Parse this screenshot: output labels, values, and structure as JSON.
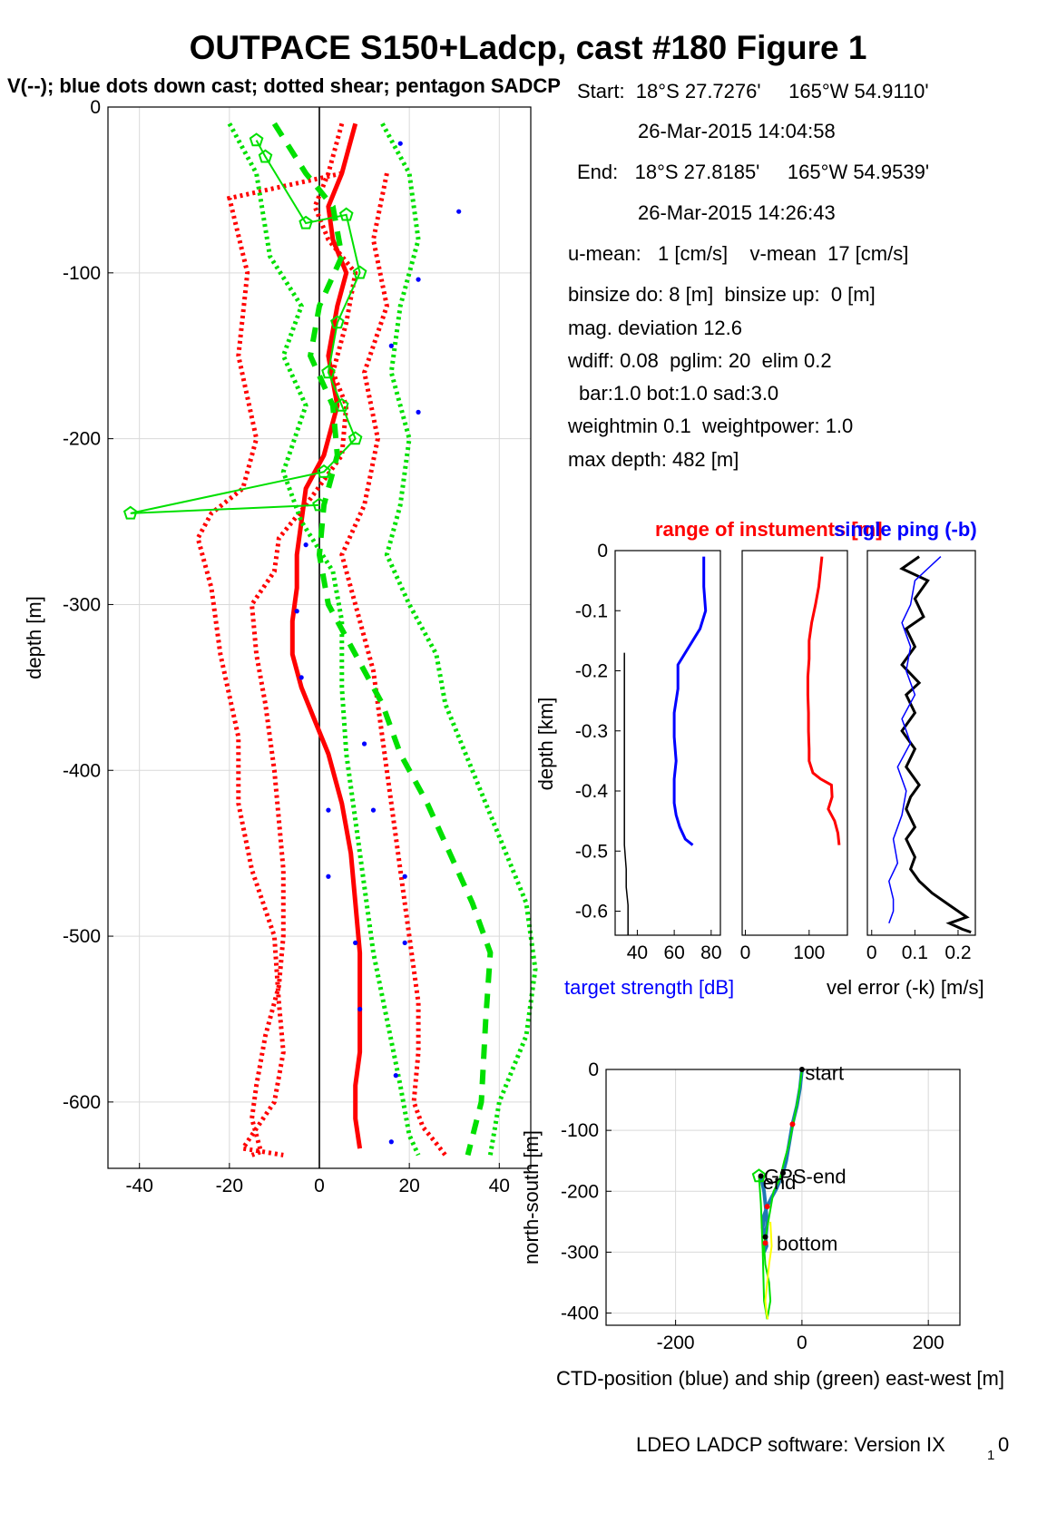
{
  "title": "OUTPACE S150+Ladcp, cast #180  Figure 1",
  "subtitle": "V(--); blue dots down cast; dotted shear; pentagon SADCP",
  "info_lines": [
    "Start:  18°S 27.7276'     165°W 54.9110'",
    "26-Mar-2015 14:04:58",
    "End:   18°S 27.8185'     165°W 54.9539'",
    "26-Mar-2015 14:26:43",
    "u-mean:   1 [cm/s]    v-mean  17 [cm/s]",
    "binsize do: 8 [m]  binsize up:  0 [m]",
    "mag. deviation 12.6",
    "wdiff: 0.08  pglim: 20  elim 0.2",
    "bar:1.0 bot:1.0 sad:3.0",
    "weightmin 0.1  weightpower: 1.0",
    "max depth: 482 [m]"
  ],
  "footer": "LDEO LADCP software: Version IX",
  "footer_sub": "1",
  "footer_end": "0",
  "colors": {
    "u": "#ff0000",
    "v": "#00e000",
    "dots": "#0000ff",
    "black": "#000000",
    "grid": "#d9d9d9",
    "yellow": "#ffff00",
    "cyan_blue": "#1f77b4"
  },
  "chart_data": [
    {
      "type": "line",
      "name": "velocity-profile",
      "ylabel": "depth [m]",
      "xlabel": "",
      "xlim": [
        -47,
        47
      ],
      "ylim": [
        -640,
        0
      ],
      "xticks": [
        "-40",
        "-20",
        "0",
        "20",
        "40"
      ],
      "xtick_values": [
        -40,
        -20,
        0,
        20,
        40
      ],
      "yticks": [
        "0",
        "-100",
        "-200",
        "-300",
        "-400",
        "-500",
        "-600"
      ],
      "ytick_values": [
        0,
        -100,
        -200,
        -300,
        -400,
        -500,
        -600
      ],
      "grid": true,
      "series": [
        {
          "key": "u_mean",
          "style": "solid-thick",
          "color": "#ff0000",
          "x": [
            8,
            5,
            2,
            3,
            6,
            4,
            2,
            4,
            1,
            -3,
            -4,
            -5,
            -5,
            -6,
            -6,
            -4,
            -1,
            2,
            5,
            7,
            8,
            9,
            9,
            9,
            8,
            8,
            9
          ],
          "y": [
            -10,
            -40,
            -60,
            -80,
            -100,
            -120,
            -150,
            -180,
            -210,
            -230,
            -250,
            -270,
            -290,
            -310,
            -330,
            -350,
            -370,
            -390,
            -420,
            -450,
            -480,
            -510,
            -540,
            -570,
            -590,
            -610,
            -628
          ]
        },
        {
          "key": "u_shear",
          "style": "dotted",
          "color": "#ff0000",
          "x": [
            5,
            2,
            -1,
            2,
            8,
            6,
            3,
            6,
            5,
            -3,
            -9,
            -10,
            -15,
            -14,
            -12,
            -10,
            -9,
            -8,
            -8,
            -9,
            -12,
            -14,
            -15,
            -14,
            -13,
            -15
          ],
          "y": [
            -10,
            -40,
            -60,
            -80,
            -100,
            -130,
            -160,
            -180,
            -210,
            -240,
            -260,
            -280,
            -300,
            -330,
            -360,
            -400,
            -430,
            -460,
            -500,
            -530,
            -560,
            -590,
            -610,
            -620,
            -630,
            -632
          ]
        },
        {
          "key": "u_shear_low",
          "style": "dotted",
          "color": "#ff0000",
          "x": [
            5,
            -20,
            -16,
            -18,
            -14,
            -17,
            -24,
            -27,
            -24,
            -22,
            -18,
            -18,
            -15,
            -10,
            -9,
            -8,
            -10,
            -15,
            -17,
            -8
          ],
          "y": [
            -40,
            -55,
            -100,
            -150,
            -200,
            -230,
            -245,
            -260,
            -290,
            -330,
            -380,
            -420,
            -460,
            -500,
            -540,
            -570,
            -600,
            -620,
            -628,
            -632
          ]
        },
        {
          "key": "u_shear_high",
          "style": "dotted",
          "color": "#ff0000",
          "x": [
            15,
            12,
            15,
            10,
            13,
            10,
            5,
            8,
            12,
            14,
            16,
            18,
            20,
            22,
            22,
            21,
            23,
            26,
            28
          ],
          "y": [
            -40,
            -80,
            -120,
            -160,
            -200,
            -240,
            -270,
            -300,
            -340,
            -380,
            -420,
            -460,
            -500,
            -540,
            -570,
            -600,
            -615,
            -625,
            -632
          ]
        },
        {
          "key": "v_mean",
          "style": "dashed-thick",
          "color": "#00e000",
          "x": [
            -10,
            -3,
            3,
            5,
            0,
            -2,
            3,
            4,
            1,
            0,
            2,
            8,
            14,
            18,
            24,
            29,
            34,
            38,
            37,
            36,
            33
          ],
          "y": [
            -10,
            -40,
            -60,
            -90,
            -120,
            -150,
            -180,
            -210,
            -240,
            -270,
            -300,
            -330,
            -360,
            -390,
            -420,
            -450,
            -480,
            -510,
            -550,
            -600,
            -632
          ]
        },
        {
          "key": "v_shear_high",
          "style": "dotted",
          "color": "#00e000",
          "x": [
            14,
            20,
            22,
            18,
            16,
            20,
            18,
            15,
            20,
            26,
            28,
            34,
            40,
            46,
            48,
            46,
            40,
            38
          ],
          "y": [
            -10,
            -40,
            -80,
            -120,
            -160,
            -200,
            -240,
            -270,
            -300,
            -330,
            -360,
            -400,
            -440,
            -480,
            -520,
            -560,
            -600,
            -632
          ]
        },
        {
          "key": "v_shear_low",
          "style": "dotted",
          "color": "#00e000",
          "x": [
            -20,
            -14,
            -11,
            -4,
            -8,
            -3,
            -8,
            -4,
            3,
            5,
            5,
            6,
            8,
            10,
            12,
            15,
            18,
            20,
            22
          ],
          "y": [
            -10,
            -40,
            -90,
            -120,
            -150,
            -180,
            -220,
            -250,
            -280,
            -310,
            -350,
            -390,
            -430,
            -470,
            -510,
            -550,
            -590,
            -620,
            -632
          ]
        },
        {
          "key": "sadcp",
          "style": "pentagon",
          "color": "#00e000",
          "x": [
            -14,
            -12,
            -3,
            6,
            9,
            4,
            2,
            5,
            8,
            1,
            -42,
            0
          ],
          "y": [
            -20,
            -30,
            -70,
            -65,
            -100,
            -130,
            -160,
            -180,
            -200,
            -220,
            -245,
            -240
          ]
        },
        {
          "key": "down_cast_dots",
          "style": "dots",
          "color": "#0000ff",
          "x": [
            18,
            31,
            22,
            16,
            22,
            -3,
            -5,
            -4,
            10,
            2,
            12,
            2,
            19,
            8,
            19,
            9,
            17,
            16
          ],
          "y": [
            -22,
            -63,
            -104,
            -144,
            -184,
            -264,
            -304,
            -344,
            -384,
            -424,
            -424,
            -464,
            -464,
            -504,
            -504,
            -544,
            -584,
            -624
          ]
        }
      ]
    },
    {
      "type": "line",
      "name": "target-strength",
      "title": "range of instuments [m]",
      "ylabel": "depth [km]",
      "xlabel": "target strength [dB]",
      "xlim": [
        28,
        85
      ],
      "ylim": [
        -0.64,
        0
      ],
      "xticks": [
        "40",
        "60",
        "80"
      ],
      "xtick_values": [
        40,
        60,
        80
      ],
      "yticks": [
        "0",
        "-0.1",
        "-0.2",
        "-0.3",
        "-0.4",
        "-0.5",
        "-0.6"
      ],
      "ytick_values": [
        0,
        -0.1,
        -0.2,
        -0.3,
        -0.4,
        -0.5,
        -0.6
      ],
      "series": [
        {
          "key": "ts_blue",
          "color": "#0000ff",
          "x": [
            76,
            76,
            77,
            74,
            68,
            62,
            62,
            60,
            60,
            61,
            60,
            60,
            61,
            63,
            66,
            70
          ],
          "y": [
            -0.01,
            -0.06,
            -0.1,
            -0.13,
            -0.16,
            -0.19,
            -0.23,
            -0.27,
            -0.31,
            -0.35,
            -0.38,
            -0.42,
            -0.44,
            -0.46,
            -0.48,
            -0.49
          ]
        },
        {
          "key": "ts_black",
          "color": "#000000",
          "x": [
            33,
            33,
            33,
            33,
            33,
            34,
            34,
            35,
            35,
            35
          ],
          "y": [
            -0.17,
            -0.25,
            -0.33,
            -0.41,
            -0.49,
            -0.53,
            -0.56,
            -0.59,
            -0.62,
            -0.64
          ]
        }
      ]
    },
    {
      "type": "line",
      "name": "range",
      "xlim": [
        -5,
        160
      ],
      "ylim": [
        -0.64,
        0
      ],
      "xticks": [
        "0",
        "100"
      ],
      "xtick_values": [
        0,
        100
      ],
      "series": [
        {
          "key": "range_red",
          "color": "#ff0000",
          "x": [
            120,
            118,
            115,
            110,
            104,
            100,
            100,
            98,
            98,
            99,
            99,
            100,
            100,
            106,
            118,
            135,
            136,
            130,
            140,
            145,
            147
          ],
          "y": [
            -0.01,
            -0.03,
            -0.06,
            -0.09,
            -0.12,
            -0.15,
            -0.18,
            -0.21,
            -0.24,
            -0.27,
            -0.3,
            -0.33,
            -0.35,
            -0.37,
            -0.38,
            -0.39,
            -0.41,
            -0.43,
            -0.45,
            -0.47,
            -0.49
          ]
        }
      ]
    },
    {
      "type": "line",
      "name": "vel-error",
      "title": "single ping (-b)",
      "xlabel": "vel error (-k) [m/s]",
      "xlim": [
        -0.01,
        0.24
      ],
      "ylim": [
        -0.64,
        0
      ],
      "xticks": [
        "0",
        "0.1",
        "0.2"
      ],
      "xtick_values": [
        0,
        0.1,
        0.2
      ],
      "series": [
        {
          "key": "err_black",
          "color": "#000000",
          "x": [
            0.11,
            0.07,
            0.13,
            0.1,
            0.12,
            0.08,
            0.1,
            0.07,
            0.11,
            0.08,
            0.1,
            0.07,
            0.1,
            0.08,
            0.11,
            0.09,
            0.08,
            0.1,
            0.08,
            0.1,
            0.09,
            0.11,
            0.14,
            0.18,
            0.2,
            0.22,
            0.18,
            0.21,
            0.23
          ],
          "y": [
            -0.01,
            -0.03,
            -0.05,
            -0.08,
            -0.11,
            -0.13,
            -0.16,
            -0.19,
            -0.22,
            -0.24,
            -0.27,
            -0.3,
            -0.33,
            -0.36,
            -0.39,
            -0.41,
            -0.43,
            -0.46,
            -0.48,
            -0.51,
            -0.53,
            -0.55,
            -0.57,
            -0.59,
            -0.6,
            -0.61,
            -0.62,
            -0.63,
            -0.635
          ]
        },
        {
          "key": "err_blue",
          "color": "#0000ff",
          "x": [
            0.16,
            0.1,
            0.09,
            0.07,
            0.09,
            0.08,
            0.1,
            0.07,
            0.09,
            0.06,
            0.08,
            0.07,
            0.05,
            0.06,
            0.04,
            0.05,
            0.05,
            0.04
          ],
          "y": [
            -0.01,
            -0.05,
            -0.09,
            -0.12,
            -0.16,
            -0.2,
            -0.24,
            -0.28,
            -0.32,
            -0.36,
            -0.4,
            -0.44,
            -0.48,
            -0.52,
            -0.55,
            -0.58,
            -0.6,
            -0.62
          ]
        }
      ]
    },
    {
      "type": "line",
      "name": "ctd-position",
      "ylabel": "north-south [m]",
      "xlabel": "CTD-position (blue) and ship (green) east-west [m]",
      "xlim": [
        -310,
        250
      ],
      "ylim": [
        -420,
        0
      ],
      "xticks": [
        "-200",
        "0",
        "200"
      ],
      "xtick_values": [
        -200,
        0,
        200
      ],
      "yticks": [
        "0",
        "-100",
        "-200",
        "-300",
        "-400"
      ],
      "ytick_values": [
        0,
        -100,
        -200,
        -300,
        -400
      ],
      "annotations": [
        {
          "text": "start",
          "x": 5,
          "y": -5
        },
        {
          "text": "GPS-end",
          "x": -60,
          "y": -175
        },
        {
          "text": "end",
          "x": -62,
          "y": -185
        },
        {
          "text": "bottom",
          "x": -40,
          "y": -285
        }
      ],
      "series": [
        {
          "key": "ctd_blue",
          "color": "#1f77b4",
          "x": [
            0,
            -3,
            -8,
            -15,
            -20,
            -25,
            -30,
            -40,
            -48,
            -55,
            -60,
            -62,
            -58,
            -56,
            -60,
            -58,
            -55,
            -60,
            -65
          ],
          "y": [
            0,
            -30,
            -60,
            -90,
            -120,
            -150,
            -170,
            -195,
            -210,
            -225,
            -240,
            -260,
            -275,
            -290,
            -300,
            -285,
            -250,
            -200,
            -175
          ]
        },
        {
          "key": "ship_green",
          "color": "#00e000",
          "x": [
            0,
            -5,
            -12,
            -20,
            -28,
            -35,
            -45,
            -50,
            -55,
            -60,
            -58,
            -52,
            -50,
            -55,
            -60,
            -62,
            -65,
            -68
          ],
          "y": [
            0,
            -40,
            -80,
            -120,
            -150,
            -180,
            -200,
            -230,
            -260,
            -290,
            -320,
            -350,
            -380,
            -410,
            -380,
            -300,
            -220,
            -175
          ]
        },
        {
          "key": "path_yellow",
          "color": "#ffff00",
          "x": [
            -50,
            -48,
            -52,
            -55,
            -58,
            -56,
            -54
          ],
          "y": [
            -250,
            -290,
            -320,
            -350,
            -380,
            -400,
            -410
          ]
        }
      ]
    }
  ]
}
